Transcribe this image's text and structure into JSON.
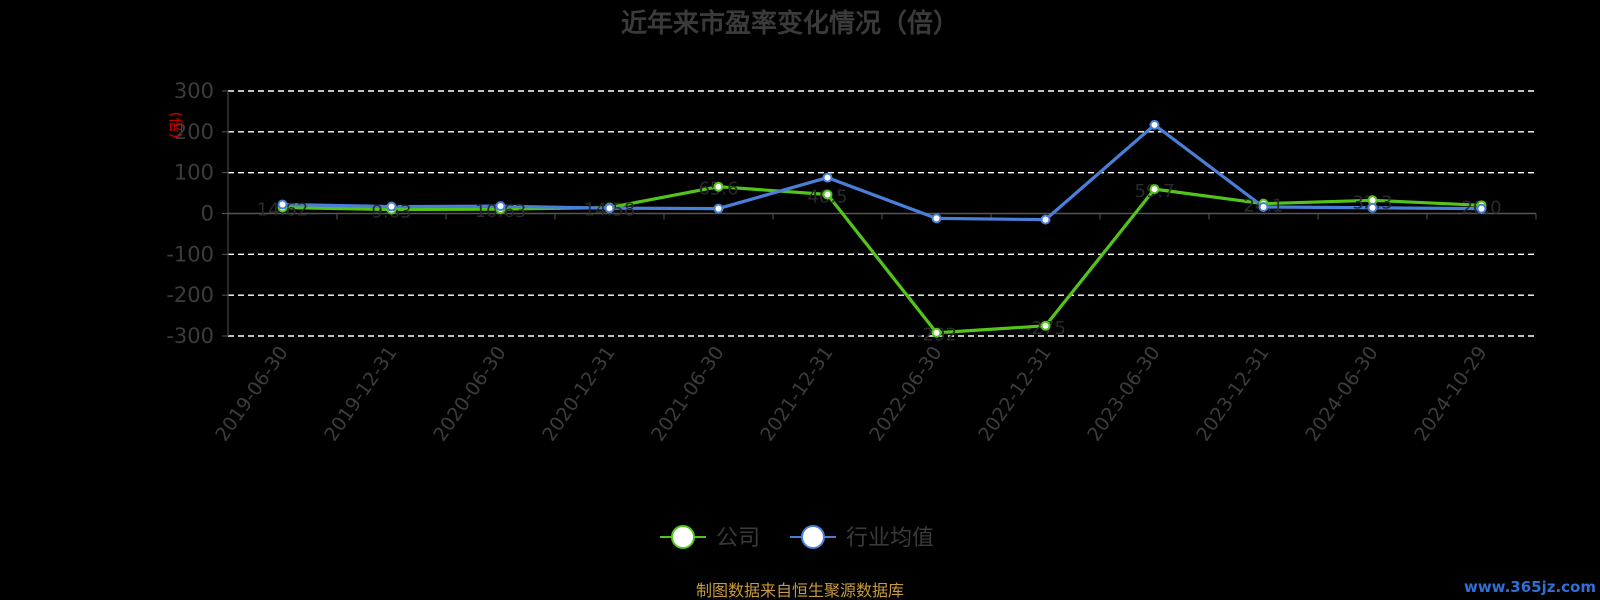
{
  "chart_data": {
    "type": "line",
    "title": "近年来市盈率变化情况（倍）",
    "unit_label": "(倍)",
    "categories": [
      "2019-06-30",
      "2019-12-31",
      "2020-06-30",
      "2020-12-31",
      "2021-06-30",
      "2021-12-31",
      "2022-06-30",
      "2022-12-31",
      "2023-06-30",
      "2023-12-31",
      "2024-06-30",
      "2024-10-29"
    ],
    "y_ticks": [
      "300",
      "200",
      "100",
      "0",
      "-100",
      "-200",
      "-300"
    ],
    "ylim": [
      -300,
      300
    ],
    "grid": true,
    "legend_position": "bottom",
    "series": [
      {
        "name": "公司",
        "color": "#52c41a",
        "values": [
          14.62,
          9.63,
          10.63,
          14.58,
          65.6,
          46.5,
          -292.0,
          -275.0,
          59.7,
          24.1,
          32.3,
          20.0
        ],
        "labels": [
          "14.62",
          "9.63",
          "10.63",
          "14.58",
          "65.6",
          "46.5",
          "-292",
          "-275",
          "59.7",
          "24.1",
          "32.3",
          "20.0"
        ]
      },
      {
        "name": "行业均值",
        "color": "#4a7fd8",
        "values": [
          22.0,
          17.0,
          18.0,
          13.0,
          12.0,
          88.0,
          -12.0,
          -15.0,
          217.0,
          16.0,
          14.0,
          12.0
        ]
      }
    ]
  },
  "footer": {
    "source": "制图数据来自恒生聚源数据库",
    "watermark": "www.365jz.com"
  }
}
